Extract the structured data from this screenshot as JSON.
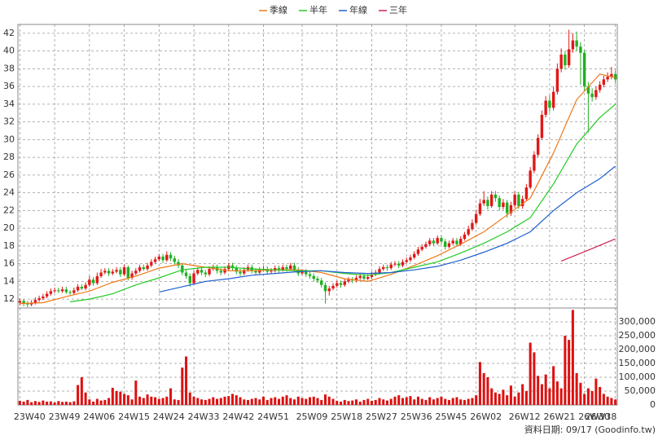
{
  "chart_data": {
    "type": "candlestick",
    "categories": [
      "23W40",
      null,
      null,
      null,
      null,
      null,
      null,
      null,
      null,
      "23W49",
      null,
      null,
      null,
      null,
      null,
      null,
      null,
      null,
      "24W06",
      null,
      null,
      null,
      null,
      null,
      null,
      null,
      null,
      "24W15",
      null,
      null,
      null,
      null,
      null,
      null,
      null,
      null,
      "24W24",
      null,
      null,
      null,
      null,
      null,
      null,
      null,
      null,
      "24W33",
      null,
      null,
      null,
      null,
      null,
      null,
      null,
      null,
      "24W42",
      null,
      null,
      null,
      null,
      null,
      null,
      null,
      null,
      "24W51",
      null,
      null,
      null,
      null,
      null,
      null,
      null,
      null,
      null,
      "25W09",
      null,
      null,
      null,
      null,
      null,
      null,
      null,
      null,
      "25W18",
      null,
      null,
      null,
      null,
      null,
      null,
      null,
      null,
      "25W27",
      null,
      null,
      null,
      null,
      null,
      null,
      null,
      null,
      "25W36",
      null,
      null,
      null,
      null,
      null,
      null,
      null,
      null,
      "25W45",
      null,
      null,
      null,
      null,
      null,
      null,
      null,
      null,
      "26W02",
      null,
      null,
      null,
      null,
      null,
      null,
      null,
      null,
      null,
      "26W12",
      null,
      null,
      null,
      null,
      null,
      null,
      null,
      null,
      "26W21",
      null,
      null,
      null,
      null,
      null,
      null,
      null,
      null,
      "26W30",
      null,
      null,
      null,
      null,
      null,
      null,
      null,
      "26W38"
    ],
    "up_color": "#e01818",
    "down_color": "#20b020",
    "open": [
      11.6,
      11.8,
      11.5,
      11.4,
      11.6,
      11.9,
      12.1,
      12.3,
      12.6,
      12.9,
      13.0,
      12.9,
      13.1,
      12.8,
      12.7,
      13.0,
      13.4,
      13.2,
      13.6,
      14.2,
      13.8,
      14.6,
      15.0,
      15.2,
      14.9,
      15.1,
      15.3,
      14.8,
      15.6,
      14.4,
      14.9,
      15.2,
      15.6,
      15.4,
      15.8,
      16.2,
      16.5,
      16.8,
      16.4,
      17.0,
      16.6,
      16.2,
      15.8,
      15.0,
      14.6,
      13.8,
      14.9,
      15.3,
      15.0,
      14.8,
      15.4,
      15.6,
      15.2,
      15.0,
      15.4,
      15.8,
      15.5,
      15.1,
      14.9,
      15.3,
      15.6,
      15.2,
      15.0,
      15.3,
      15.4,
      15.1,
      15.2,
      15.5,
      15.3,
      15.6,
      15.4,
      15.8,
      15.3,
      14.9,
      15.1,
      14.8,
      14.6,
      14.3,
      14.1,
      13.6,
      12.9,
      13.2,
      13.5,
      13.8,
      13.6,
      14.0,
      14.2,
      14.1,
      14.4,
      14.6,
      14.3,
      14.5,
      14.8,
      15.0,
      15.4,
      15.6,
      15.5,
      15.9,
      16.0,
      15.8,
      16.2,
      16.4,
      16.7,
      17.1,
      17.6,
      17.9,
      18.2,
      18.6,
      18.3,
      18.9,
      18.5,
      17.9,
      18.3,
      18.6,
      18.2,
      18.8,
      19.3,
      19.9,
      20.6,
      21.6,
      22.8,
      23.2,
      22.5,
      23.8,
      23.4,
      22.4,
      22.9,
      21.7,
      22.6,
      23.8,
      22.5,
      23.3,
      24.6,
      26.5,
      28.3,
      30.2,
      32.8,
      34.4,
      33.6,
      35.4,
      38.0,
      39.6,
      38.4,
      40.2,
      41.2,
      40.5,
      39.8,
      36.0,
      35.2,
      34.8,
      35.6,
      36.2,
      36.8,
      37.1,
      37.4
    ],
    "high": [
      12.1,
      12.0,
      11.8,
      11.9,
      12.2,
      12.4,
      12.6,
      12.9,
      13.2,
      13.3,
      13.3,
      13.4,
      13.4,
      13.0,
      13.3,
      13.7,
      13.7,
      13.9,
      14.6,
      14.5,
      15.0,
      15.4,
      15.5,
      15.5,
      15.4,
      15.6,
      15.6,
      15.9,
      15.8,
      15.2,
      15.5,
      15.9,
      15.9,
      16.1,
      16.5,
      16.8,
      17.1,
      17.1,
      17.4,
      17.3,
      16.9,
      16.5,
      16.1,
      15.3,
      14.9,
      15.2,
      15.6,
      15.6,
      15.3,
      15.7,
      15.9,
      15.9,
      15.5,
      15.7,
      16.1,
      16.1,
      15.8,
      15.4,
      15.6,
      15.9,
      15.9,
      15.5,
      15.6,
      15.7,
      15.7,
      15.5,
      15.8,
      15.8,
      15.9,
      15.9,
      16.1,
      16.1,
      15.6,
      15.4,
      15.4,
      15.1,
      14.9,
      14.6,
      14.4,
      13.9,
      13.5,
      13.8,
      14.1,
      14.1,
      14.3,
      14.5,
      14.5,
      14.7,
      14.9,
      14.9,
      14.8,
      15.1,
      15.3,
      15.7,
      15.9,
      15.9,
      16.2,
      16.3,
      16.3,
      16.5,
      16.7,
      17.0,
      17.4,
      17.9,
      18.2,
      18.5,
      18.9,
      18.9,
      19.2,
      19.2,
      18.8,
      18.6,
      18.9,
      18.9,
      19.1,
      19.6,
      20.3,
      21.0,
      22.1,
      23.3,
      24.2,
      23.6,
      24.2,
      24.2,
      23.7,
      23.3,
      23.2,
      23.0,
      24.2,
      24.1,
      23.7,
      25.0,
      26.9,
      28.7,
      30.6,
      33.3,
      34.9,
      35.0,
      36.0,
      38.6,
      40.3,
      40.0,
      42.4,
      42.0,
      42.2,
      41.0,
      40.1,
      36.5,
      35.8,
      36.0,
      36.6,
      37.2,
      37.6,
      38.2,
      37.8
    ],
    "low": [
      11.3,
      11.2,
      11.1,
      11.2,
      11.4,
      11.7,
      11.9,
      12.1,
      12.4,
      12.7,
      12.7,
      12.7,
      12.6,
      12.5,
      12.5,
      12.8,
      13.0,
      13.0,
      13.4,
      13.5,
      13.6,
      14.4,
      14.8,
      14.6,
      14.7,
      14.9,
      14.5,
      14.6,
      14.1,
      14.2,
      14.7,
      15.0,
      15.2,
      15.2,
      15.6,
      16.0,
      16.3,
      16.1,
      16.2,
      16.3,
      15.9,
      15.5,
      14.7,
      14.3,
      13.4,
      13.6,
      14.7,
      14.7,
      14.5,
      14.6,
      15.2,
      14.9,
      14.7,
      14.8,
      15.2,
      15.2,
      14.8,
      14.6,
      14.7,
      15.1,
      14.9,
      14.7,
      14.8,
      15.1,
      14.8,
      14.9,
      15.0,
      15.0,
      15.1,
      15.1,
      15.2,
      15.0,
      14.6,
      14.7,
      14.5,
      14.3,
      14.0,
      13.8,
      13.3,
      11.5,
      12.4,
      13.0,
      13.3,
      13.3,
      13.4,
      13.8,
      13.8,
      13.9,
      14.2,
      14.0,
      14.1,
      14.3,
      14.6,
      14.8,
      15.2,
      15.2,
      15.3,
      15.7,
      15.5,
      15.6,
      16.0,
      16.2,
      16.5,
      16.9,
      17.4,
      17.7,
      18.0,
      18.0,
      18.1,
      18.2,
      17.6,
      17.7,
      18.1,
      17.9,
      18.0,
      18.6,
      19.1,
      19.7,
      20.4,
      21.4,
      22.5,
      22.1,
      22.3,
      23.0,
      22.0,
      22.1,
      21.2,
      21.4,
      22.3,
      22.2,
      22.2,
      23.1,
      24.4,
      26.2,
      28.0,
      30.0,
      32.5,
      33.1,
      33.3,
      35.1,
      37.6,
      37.9,
      38.1,
      39.8,
      40.0,
      36.2,
      35.5,
      30.8,
      34.3,
      34.5,
      35.3,
      35.9,
      36.5,
      36.8,
      36.4
    ],
    "close": [
      11.8,
      11.5,
      11.4,
      11.6,
      11.9,
      12.1,
      12.3,
      12.6,
      12.9,
      13.0,
      12.9,
      13.1,
      12.8,
      12.7,
      13.0,
      13.4,
      13.2,
      13.6,
      14.2,
      13.8,
      14.6,
      15.0,
      15.2,
      14.9,
      15.1,
      15.3,
      14.8,
      15.6,
      14.4,
      14.9,
      15.2,
      15.6,
      15.4,
      15.8,
      16.2,
      16.5,
      16.8,
      16.4,
      17.0,
      16.6,
      16.2,
      15.8,
      15.0,
      14.6,
      13.8,
      14.9,
      15.3,
      15.0,
      14.8,
      15.4,
      15.6,
      15.2,
      15.0,
      15.4,
      15.8,
      15.5,
      15.1,
      14.9,
      15.3,
      15.6,
      15.2,
      15.0,
      15.3,
      15.4,
      15.1,
      15.2,
      15.5,
      15.3,
      15.6,
      15.4,
      15.8,
      15.3,
      14.9,
      15.1,
      14.8,
      14.6,
      14.3,
      14.1,
      13.6,
      12.9,
      13.2,
      13.5,
      13.8,
      13.6,
      14.0,
      14.2,
      14.1,
      14.4,
      14.6,
      14.3,
      14.5,
      14.8,
      15.0,
      15.4,
      15.6,
      15.5,
      15.9,
      16.0,
      15.8,
      16.2,
      16.4,
      16.7,
      17.1,
      17.6,
      17.9,
      18.2,
      18.6,
      18.3,
      18.9,
      18.5,
      17.9,
      18.3,
      18.6,
      18.2,
      18.8,
      19.3,
      19.9,
      20.6,
      21.6,
      22.8,
      23.2,
      22.5,
      23.8,
      23.4,
      22.4,
      22.9,
      21.7,
      22.6,
      23.8,
      22.5,
      23.3,
      24.6,
      26.5,
      28.3,
      30.2,
      32.8,
      34.4,
      33.6,
      35.4,
      38.0,
      39.6,
      38.4,
      40.2,
      41.2,
      40.5,
      39.8,
      36.0,
      35.2,
      34.8,
      35.6,
      36.2,
      36.8,
      37.1,
      37.4,
      36.8
    ],
    "ylim": [
      11,
      43
    ],
    "yticks": [
      12,
      14,
      16,
      18,
      20,
      22,
      24,
      26,
      28,
      30,
      32,
      34,
      36,
      38,
      40,
      42
    ],
    "grid": true,
    "moving_averages": [
      {
        "name": "季線",
        "color": "#f07818",
        "x": [
          0,
          6,
          12,
          18,
          24,
          30,
          36,
          42,
          48,
          54,
          60,
          66,
          72,
          78,
          84,
          90,
          96,
          102,
          108,
          114,
          120,
          126,
          132,
          138,
          144,
          150,
          154
        ],
        "values": [
          11.5,
          11.6,
          12.3,
          12.9,
          13.9,
          14.6,
          15.5,
          16.0,
          15.6,
          15.2,
          15.2,
          15.3,
          15.3,
          15.0,
          14.3,
          14.0,
          14.8,
          15.8,
          16.9,
          18.2,
          19.6,
          21.5,
          23.4,
          28.5,
          34.5,
          37.4,
          37.0
        ]
      },
      {
        "name": "半年",
        "color": "#22cc22",
        "x": [
          13,
          18,
          24,
          30,
          36,
          42,
          48,
          54,
          60,
          66,
          72,
          78,
          84,
          90,
          96,
          102,
          108,
          114,
          120,
          126,
          132,
          138,
          144,
          150,
          154
        ],
        "values": [
          11.7,
          12.0,
          12.6,
          13.6,
          14.4,
          15.3,
          15.6,
          15.6,
          15.4,
          15.3,
          15.2,
          15.2,
          14.9,
          14.7,
          15.0,
          15.6,
          16.2,
          17.2,
          18.3,
          19.6,
          21.2,
          25.0,
          29.5,
          32.5,
          34.0
        ]
      },
      {
        "name": "年線",
        "color": "#1f5fd0",
        "x": [
          36,
          42,
          48,
          54,
          60,
          66,
          72,
          78,
          84,
          90,
          96,
          102,
          108,
          114,
          120,
          126,
          132,
          138,
          144,
          150,
          154
        ],
        "values": [
          12.8,
          13.4,
          14.0,
          14.3,
          14.7,
          14.9,
          15.1,
          15.2,
          15.0,
          14.9,
          15.0,
          15.3,
          15.7,
          16.4,
          17.3,
          18.3,
          19.6,
          22.0,
          24.0,
          25.6,
          27.0
        ]
      },
      {
        "name": "三年",
        "color": "#cc2250",
        "x": [
          140,
          144,
          148,
          154
        ],
        "values": [
          16.3,
          17.0,
          17.7,
          18.8
        ]
      }
    ],
    "volume": {
      "color": "#dd1111",
      "ylim": [
        0,
        350000
      ],
      "yticks": [
        0,
        {
          "value": 50000,
          "label": "50,000"
        },
        {
          "value": 100000,
          "label": "100,000"
        },
        {
          "value": 150000,
          "label": "150,000"
        },
        {
          "value": 200000,
          "label": "200,000"
        },
        {
          "value": 250000,
          "label": "250,000"
        },
        {
          "value": 300000,
          "label": "300,000"
        }
      ],
      "values": [
        15000,
        12000,
        18000,
        10000,
        14000,
        11000,
        16000,
        12000,
        13000,
        9000,
        14000,
        11000,
        12000,
        10000,
        13000,
        72000,
        100000,
        45000,
        20000,
        12000,
        22000,
        16000,
        18000,
        25000,
        62000,
        50000,
        48000,
        40000,
        35000,
        20000,
        88000,
        30000,
        25000,
        38000,
        30000,
        28000,
        22000,
        25000,
        30000,
        60000,
        20000,
        18000,
        135000,
        175000,
        45000,
        30000,
        25000,
        20000,
        18000,
        22000,
        28000,
        22000,
        25000,
        30000,
        32000,
        40000,
        35000,
        28000,
        20000,
        18000,
        22000,
        25000,
        20000,
        30000,
        18000,
        25000,
        28000,
        22000,
        30000,
        35000,
        25000,
        20000,
        30000,
        25000,
        22000,
        28000,
        30000,
        25000,
        18000,
        38000,
        30000,
        22000,
        15000,
        12000,
        18000,
        14000,
        16000,
        20000,
        12000,
        18000,
        22000,
        15000,
        18000,
        25000,
        20000,
        16000,
        22000,
        30000,
        35000,
        25000,
        28000,
        32000,
        20000,
        30000,
        22000,
        18000,
        28000,
        20000,
        25000,
        30000,
        22000,
        18000,
        25000,
        28000,
        20000,
        18000,
        22000,
        25000,
        35000,
        155000,
        115000,
        100000,
        60000,
        45000,
        40000,
        55000,
        35000,
        70000,
        30000,
        45000,
        75000,
        50000,
        225000,
        190000,
        105000,
        75000,
        110000,
        60000,
        140000,
        85000,
        60000,
        250000,
        235000,
        343000,
        115000,
        80000,
        40000,
        60000,
        50000,
        95000,
        65000,
        40000,
        30000,
        25000,
        20000
      ]
    },
    "footer": "資料日期: 09/17  (Goodinfo.tw)"
  }
}
